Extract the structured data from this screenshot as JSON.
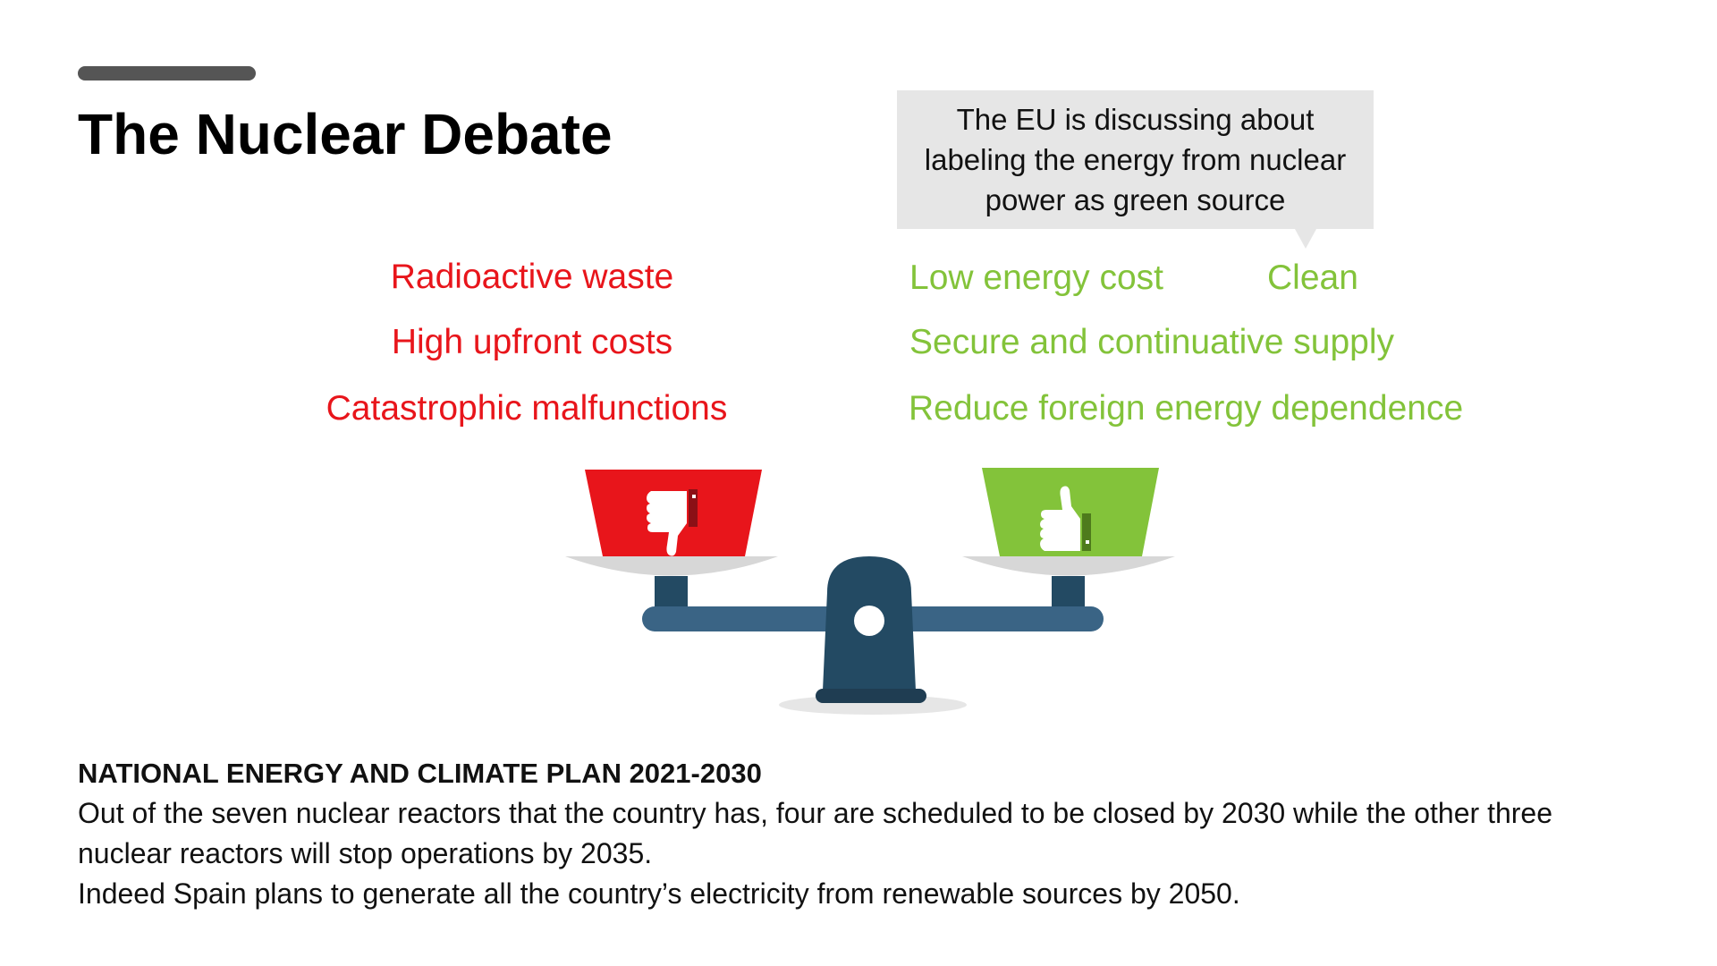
{
  "slide": {
    "title": "The Nuclear Debate"
  },
  "callout": {
    "text": "The EU is discussing about labeling the energy from nuclear power as green source"
  },
  "cons": [
    "Radioactive waste",
    "High upfront costs",
    "Catastrophic malfunctions"
  ],
  "pros": {
    "low_cost": "Low energy cost",
    "clean": "Clean",
    "secure": "Secure and continuative supply",
    "reduce": "Reduce foreign energy dependence"
  },
  "colors": {
    "con": "#e8151b",
    "pro": "#83c33a",
    "scale_beam": "#3a6485",
    "scale_post": "#234a63",
    "pan": "#d7d7d7"
  },
  "icons": {
    "left_pan": "thumbs-down-icon",
    "right_pan": "thumbs-up-icon"
  },
  "plan": {
    "heading": "NATIONAL ENERGY AND CLIMATE PLAN 2021-2030",
    "paragraph1": "Out of the seven nuclear reactors that the country has, four are scheduled to be closed by 2030 while the other three nuclear reactors will stop operations by 2035.",
    "paragraph2": "Indeed Spain plans to generate all the country’s electricity from renewable sources by 2050."
  }
}
